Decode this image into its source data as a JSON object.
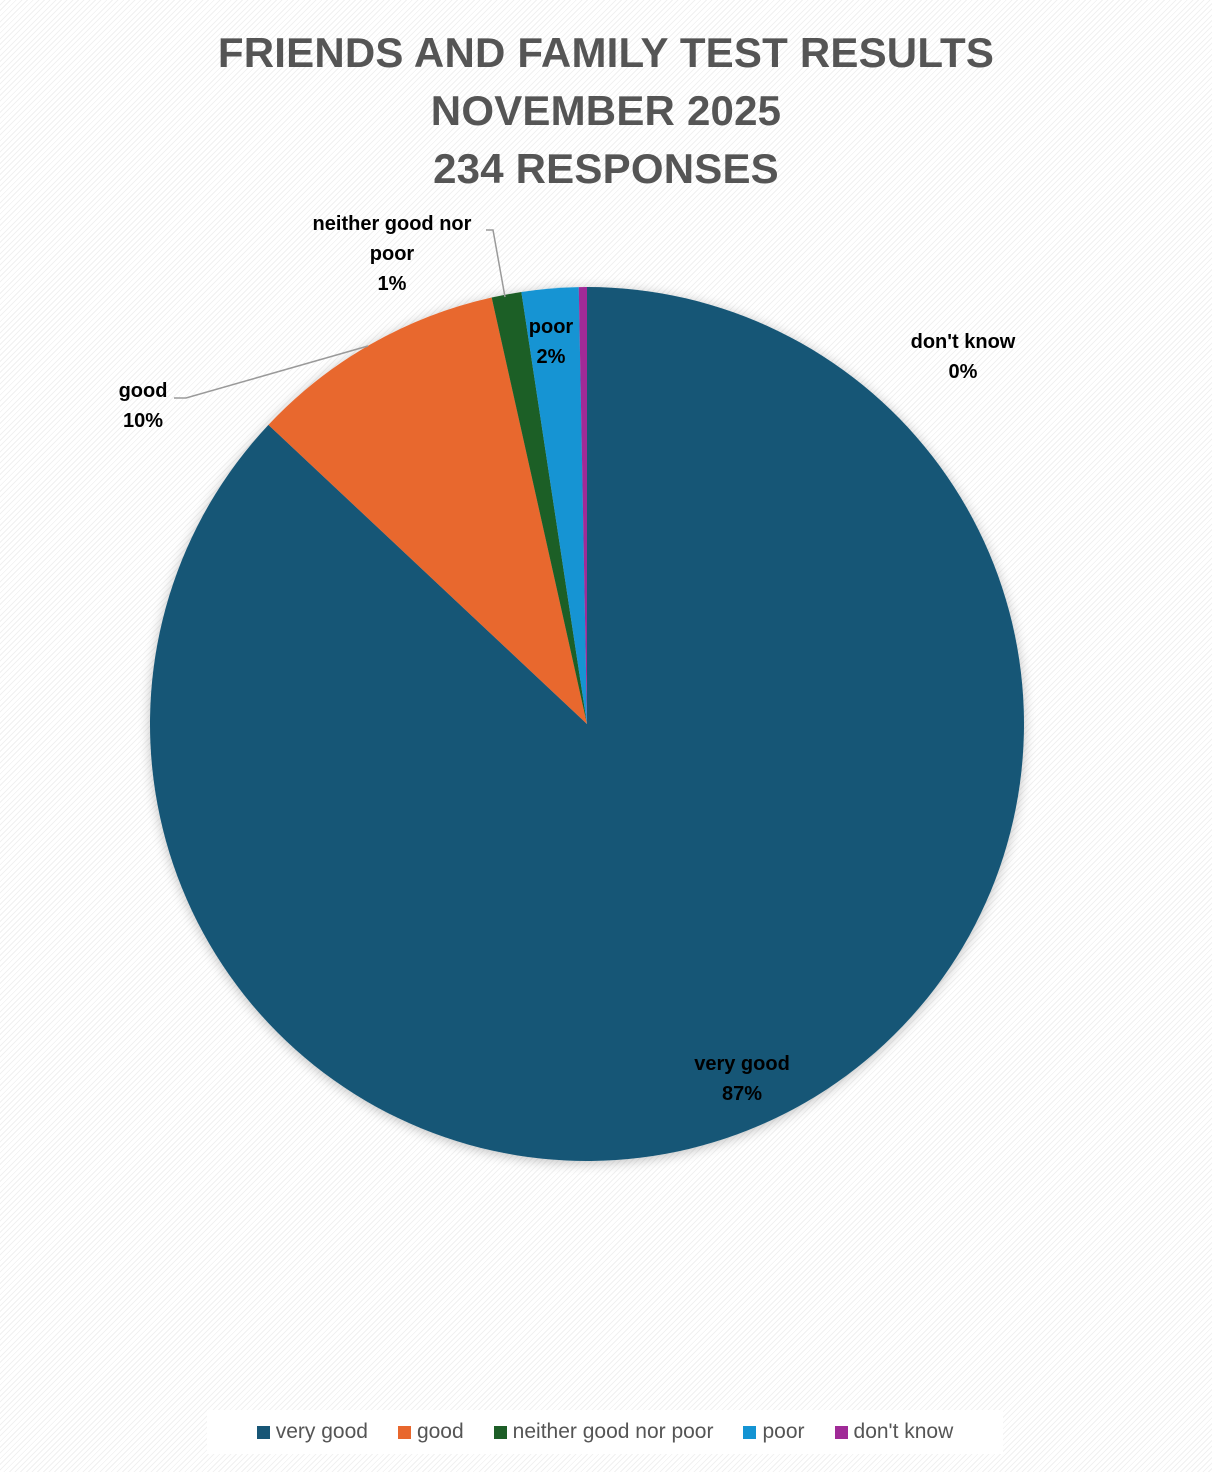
{
  "title_lines": [
    "FRIENDS AND FAMILY TEST RESULTS",
    "NOVEMBER 2025",
    "234 RESPONSES"
  ],
  "chart_data": {
    "type": "pie",
    "title": "FRIENDS AND FAMILY TEST RESULTS NOVEMBER 2025 234 RESPONSES",
    "categories": [
      "very good",
      "good",
      "neither good nor poor",
      "poor",
      "don't know"
    ],
    "values": [
      87,
      10,
      1,
      2,
      0
    ],
    "shares": [
      0.87,
      0.095,
      0.011,
      0.021,
      0.003
    ],
    "value_labels": [
      "87%",
      "10%",
      "1%",
      "2%",
      "0%"
    ],
    "label_lines": [
      [
        "very good",
        "87%"
      ],
      [
        "good",
        "10%"
      ],
      [
        "neither good nor",
        "poor",
        "1%"
      ],
      [
        "poor",
        "2%"
      ],
      [
        "don't know",
        "0%"
      ]
    ],
    "colors": [
      "#175676",
      "#E8672D",
      "#1D5E27",
      "#1494D3",
      "#A02A97"
    ],
    "legend_position": "bottom"
  },
  "legend": {
    "items": [
      {
        "label": "very good",
        "color": "#175676"
      },
      {
        "label": "good",
        "color": "#E8672D"
      },
      {
        "label": "neither good nor poor",
        "color": "#1D5E27"
      },
      {
        "label": "poor",
        "color": "#1494D3"
      },
      {
        "label": "don't know",
        "color": "#A02A97"
      }
    ]
  }
}
